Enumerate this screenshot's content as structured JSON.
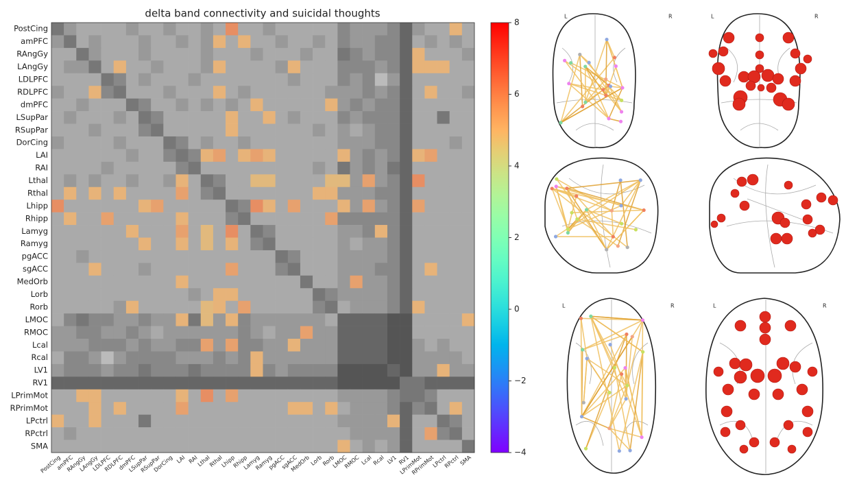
{
  "chart_data": {
    "type": "heatmap",
    "title": "delta band connectivity and suicidal thoughts",
    "categories": [
      "PostCing",
      "amPFC",
      "RAngGy",
      "LAngGy",
      "LDLPFC",
      "RDLPFC",
      "dmPFC",
      "LSupPar",
      "RSupPar",
      "DorCing",
      "LAI",
      "RAI",
      "Lthal",
      "Rthal",
      "Lhipp",
      "Rhipp",
      "Lamyg",
      "Ramyg",
      "pgACC",
      "sgACC",
      "MedOrb",
      "Lorb",
      "Rorb",
      "LMOC",
      "RMOC",
      "Lcal",
      "Rcal",
      "LV1",
      "RV1",
      "LPrimMot",
      "RPrimMot",
      "LPctrl",
      "RPctrl",
      "SMA"
    ],
    "matrix": [
      [
        -1,
        1,
        2,
        2,
        2,
        2,
        1,
        2,
        2,
        1,
        2,
        2,
        1,
        2,
        6,
        2,
        2,
        1,
        2,
        2,
        2,
        2,
        2,
        0,
        1,
        1,
        1,
        0,
        -2,
        1,
        2,
        2,
        5,
        2
      ],
      [
        1,
        -1,
        2,
        1,
        2,
        2,
        2,
        1,
        2,
        2,
        1,
        2,
        1,
        5,
        2,
        5,
        2,
        2,
        1,
        2,
        2,
        1,
        2,
        0,
        1,
        1,
        0,
        0,
        -2,
        2,
        1,
        2,
        1,
        2
      ],
      [
        2,
        2,
        -1,
        1,
        2,
        2,
        2,
        1,
        2,
        2,
        2,
        2,
        1,
        2,
        2,
        2,
        1,
        2,
        2,
        2,
        1,
        2,
        2,
        -1,
        0,
        1,
        0,
        0,
        -2,
        5,
        2,
        2,
        2,
        1
      ],
      [
        2,
        1,
        1,
        -1,
        2,
        5,
        2,
        2,
        1,
        2,
        2,
        2,
        1,
        5,
        2,
        2,
        2,
        2,
        1,
        5,
        2,
        2,
        2,
        0,
        0,
        0,
        1,
        0,
        -2,
        5,
        5,
        5,
        2,
        2
      ],
      [
        2,
        2,
        2,
        2,
        -1,
        0,
        2,
        1,
        2,
        2,
        2,
        1,
        2,
        2,
        2,
        2,
        2,
        2,
        2,
        1,
        2,
        2,
        2,
        0,
        1,
        0,
        3,
        1,
        -2,
        2,
        2,
        2,
        2,
        2
      ],
      [
        1,
        2,
        2,
        5,
        0,
        -1,
        2,
        2,
        2,
        1,
        2,
        2,
        2,
        5,
        2,
        1,
        2,
        2,
        2,
        2,
        2,
        2,
        1,
        1,
        1,
        0,
        1,
        0,
        -2,
        2,
        5,
        2,
        2,
        1
      ],
      [
        2,
        2,
        1,
        2,
        2,
        2,
        -1,
        0,
        2,
        2,
        1,
        2,
        1,
        2,
        1,
        2,
        5,
        2,
        2,
        2,
        2,
        2,
        5,
        1,
        0,
        1,
        0,
        0,
        -2,
        2,
        2,
        2,
        2,
        2
      ],
      [
        2,
        1,
        2,
        2,
        2,
        1,
        2,
        -1,
        0,
        2,
        2,
        2,
        2,
        2,
        5,
        2,
        2,
        5,
        2,
        1,
        2,
        2,
        2,
        0,
        1,
        0,
        0,
        0,
        -2,
        2,
        2,
        -1,
        2,
        2
      ],
      [
        2,
        2,
        2,
        1,
        2,
        2,
        2,
        0,
        -1,
        2,
        2,
        2,
        2,
        2,
        5,
        2,
        2,
        2,
        2,
        2,
        2,
        1,
        2,
        1,
        2,
        1,
        0,
        0,
        -2,
        2,
        2,
        2,
        2,
        2
      ],
      [
        1,
        2,
        2,
        2,
        2,
        1,
        2,
        2,
        2,
        -1,
        0,
        2,
        1,
        2,
        2,
        1,
        2,
        2,
        2,
        2,
        2,
        2,
        2,
        1,
        1,
        1,
        0,
        0,
        -2,
        2,
        2,
        2,
        1,
        2
      ],
      [
        2,
        2,
        2,
        2,
        2,
        2,
        1,
        2,
        2,
        0,
        -1,
        0,
        5,
        5.5,
        2,
        5,
        5.5,
        5,
        2,
        2,
        2,
        2,
        2,
        5,
        1,
        0,
        1,
        0,
        -2,
        5,
        5.5,
        2,
        2,
        2
      ],
      [
        2,
        2,
        2,
        2,
        1,
        2,
        2,
        2,
        2,
        2,
        0,
        -1,
        2,
        2,
        2,
        2,
        2,
        2,
        2,
        2,
        2,
        1,
        2,
        -1,
        1,
        0,
        1,
        -1,
        -2,
        2,
        2,
        2,
        2,
        2
      ],
      [
        2,
        1,
        2,
        1,
        2,
        2,
        1,
        2,
        2,
        1,
        5,
        2,
        -1,
        0,
        2,
        2,
        4.8,
        4.8,
        2,
        2,
        2,
        2,
        4.8,
        4.8,
        1,
        5.5,
        1,
        0,
        -2,
        6,
        2,
        2,
        2,
        2
      ],
      [
        2,
        5,
        2,
        5,
        2,
        5,
        2,
        2,
        2,
        2,
        5.5,
        2,
        0,
        -1,
        2,
        2,
        2,
        2,
        2,
        2,
        2,
        5,
        5,
        1,
        1,
        1,
        0,
        0,
        -2,
        2,
        2,
        2,
        2,
        2
      ],
      [
        6,
        2,
        2,
        2,
        2,
        2,
        2,
        5,
        5.5,
        2,
        2,
        2,
        2,
        2,
        -1,
        0,
        6,
        5,
        2,
        5.5,
        2,
        2,
        2,
        5,
        1,
        5.5,
        1,
        0,
        -2,
        5.5,
        2,
        2,
        2,
        2
      ],
      [
        2,
        5,
        2,
        2,
        5.5,
        2,
        2,
        2,
        2,
        2,
        5,
        2,
        2,
        2,
        0,
        -1,
        2,
        2,
        2,
        2,
        2,
        2,
        5.5,
        0,
        0,
        0,
        0,
        0,
        -2,
        2,
        2,
        2,
        2,
        2
      ],
      [
        2,
        2,
        2,
        2,
        2,
        2,
        5,
        2,
        2,
        2,
        5.5,
        2,
        4.8,
        2,
        6,
        2,
        -1,
        0,
        2,
        2,
        2,
        2,
        2,
        1,
        1,
        0,
        5,
        0,
        -2,
        2,
        2,
        2,
        2,
        2
      ],
      [
        2,
        2,
        2,
        2,
        2,
        2,
        2,
        5,
        2,
        2,
        5,
        2,
        4.8,
        2,
        5,
        2,
        0,
        -1,
        2,
        2,
        2,
        2,
        2,
        1,
        2,
        1,
        1,
        0,
        -2,
        2,
        2,
        2,
        2,
        2
      ],
      [
        2,
        2,
        1,
        2,
        2,
        2,
        2,
        2,
        2,
        2,
        2,
        2,
        2,
        2,
        2,
        2,
        2,
        2,
        -1,
        0,
        2,
        2,
        2,
        1,
        1,
        1,
        1,
        0,
        -2,
        2,
        2,
        2,
        2,
        2
      ],
      [
        2,
        2,
        2,
        5,
        2,
        2,
        2,
        1,
        2,
        2,
        2,
        2,
        2,
        2,
        5.5,
        2,
        2,
        2,
        0,
        -1,
        2,
        2,
        2,
        1,
        1,
        1,
        0,
        0,
        -2,
        2,
        5,
        2,
        2,
        2
      ],
      [
        2,
        2,
        2,
        2,
        2,
        2,
        2,
        2,
        2,
        2,
        5,
        2,
        2,
        2,
        2,
        2,
        2,
        2,
        2,
        2,
        -1,
        2,
        2,
        1,
        5.5,
        1,
        1,
        0,
        -2,
        2,
        2,
        2,
        2,
        2
      ],
      [
        2,
        2,
        2,
        2,
        2,
        2,
        2,
        2,
        2,
        2,
        2,
        1,
        2,
        5,
        5,
        2,
        2,
        2,
        2,
        2,
        2,
        -1,
        0,
        1,
        1,
        1,
        1,
        0,
        -2,
        2,
        2,
        2,
        2,
        2
      ],
      [
        2,
        2,
        2,
        2,
        2,
        1,
        5,
        2,
        2,
        2,
        2,
        2,
        4.8,
        5,
        2,
        5.5,
        2,
        2,
        2,
        2,
        2,
        0,
        -1,
        2,
        1,
        1,
        1,
        0,
        -2,
        5,
        2,
        2,
        2,
        2
      ],
      [
        2,
        0,
        -1,
        0,
        0,
        1,
        1,
        0,
        1,
        1,
        5,
        -1,
        4.8,
        1,
        5,
        0,
        1,
        1,
        1,
        1,
        1,
        1,
        2,
        -2,
        -2,
        -2,
        -2,
        -3,
        -3,
        2,
        2,
        2,
        2,
        5
      ],
      [
        1,
        1,
        0,
        0,
        1,
        1,
        0,
        1,
        2,
        1,
        1,
        1,
        1,
        1,
        1,
        0,
        1,
        2,
        1,
        1,
        5.5,
        1,
        1,
        -2,
        -2,
        -2,
        -2,
        -3,
        -3,
        2,
        2,
        2,
        2,
        2
      ],
      [
        1,
        1,
        1,
        0,
        0,
        0,
        1,
        0,
        1,
        1,
        0,
        0,
        5.5,
        1,
        5.5,
        0,
        0,
        1,
        1,
        5,
        1,
        1,
        1,
        -2,
        -2,
        -2,
        -2,
        -3,
        -3,
        1,
        2,
        1,
        2,
        2
      ],
      [
        2,
        0,
        0,
        1,
        3,
        1,
        0,
        0,
        0,
        0,
        1,
        1,
        1,
        0,
        1,
        0,
        5,
        1,
        1,
        1,
        1,
        1,
        1,
        -2,
        -2,
        -2,
        -2,
        -3,
        -3,
        1,
        1,
        1,
        1,
        2
      ],
      [
        1,
        0,
        0,
        0,
        1,
        0,
        0,
        -1,
        0,
        0,
        0,
        -1,
        0,
        0,
        0,
        0,
        5,
        0,
        1,
        0,
        0,
        0,
        0,
        -3,
        -3,
        -3,
        -3,
        -2,
        -3,
        1,
        1,
        5,
        1,
        1
      ],
      [
        -2,
        -2,
        -2,
        -2,
        -2,
        -2,
        -2,
        -2,
        -2,
        -2,
        -2,
        -2,
        -2,
        -2,
        -2,
        -2,
        -2,
        -2,
        -2,
        -2,
        -2,
        -2,
        -2,
        -3,
        -3,
        -3,
        -3,
        -3,
        -1,
        -1,
        -2,
        -2,
        -2,
        -2
      ],
      [
        2,
        2,
        5,
        5,
        2,
        2,
        2,
        2,
        2,
        2,
        5,
        2,
        6,
        2,
        5.5,
        2,
        2,
        2,
        2,
        2,
        2,
        2,
        2,
        1,
        1,
        1,
        1,
        0,
        -1,
        -1,
        0,
        2,
        2,
        2
      ],
      [
        2,
        2,
        2,
        5,
        2,
        5,
        2,
        2,
        2,
        2,
        5.5,
        2,
        2,
        2,
        2,
        2,
        2,
        2,
        2,
        5,
        5,
        2,
        5,
        2,
        1,
        1,
        1,
        0,
        -2,
        0,
        -1,
        2,
        5,
        2
      ],
      [
        5,
        2,
        2,
        5,
        2,
        2,
        2,
        -1,
        2,
        2,
        2,
        2,
        2,
        2,
        2,
        2,
        2,
        2,
        2,
        2,
        2,
        2,
        2,
        1,
        1,
        1,
        1,
        5,
        -2,
        2,
        2,
        -1,
        0,
        2
      ],
      [
        2,
        1,
        2,
        2,
        2,
        2,
        2,
        2,
        2,
        2,
        2,
        2,
        2,
        2,
        2,
        2,
        2,
        2,
        2,
        2,
        2,
        2,
        2,
        2,
        1,
        1,
        1,
        1,
        -2,
        2,
        5.5,
        0,
        -1,
        2
      ],
      [
        2,
        2,
        2,
        2,
        2,
        2,
        2,
        2,
        2,
        2,
        2,
        2,
        2,
        2,
        2,
        2,
        2,
        2,
        2,
        2,
        2,
        2,
        2,
        5,
        2,
        1,
        2,
        1,
        -2,
        2,
        2,
        2,
        2,
        -1
      ]
    ],
    "colormap": "rainbow",
    "clim": [
      -4,
      8
    ],
    "cticks": [
      {
        "value": -4,
        "label": "−4"
      },
      {
        "value": -2,
        "label": "−2"
      },
      0,
      2,
      4,
      6,
      8
    ]
  },
  "brain_views": [
    {
      "left": "L",
      "right": "R"
    },
    {
      "left": "L",
      "right": "R"
    },
    {
      "left": "L",
      "right": "R"
    },
    {
      "left": "L",
      "right": "R"
    }
  ]
}
